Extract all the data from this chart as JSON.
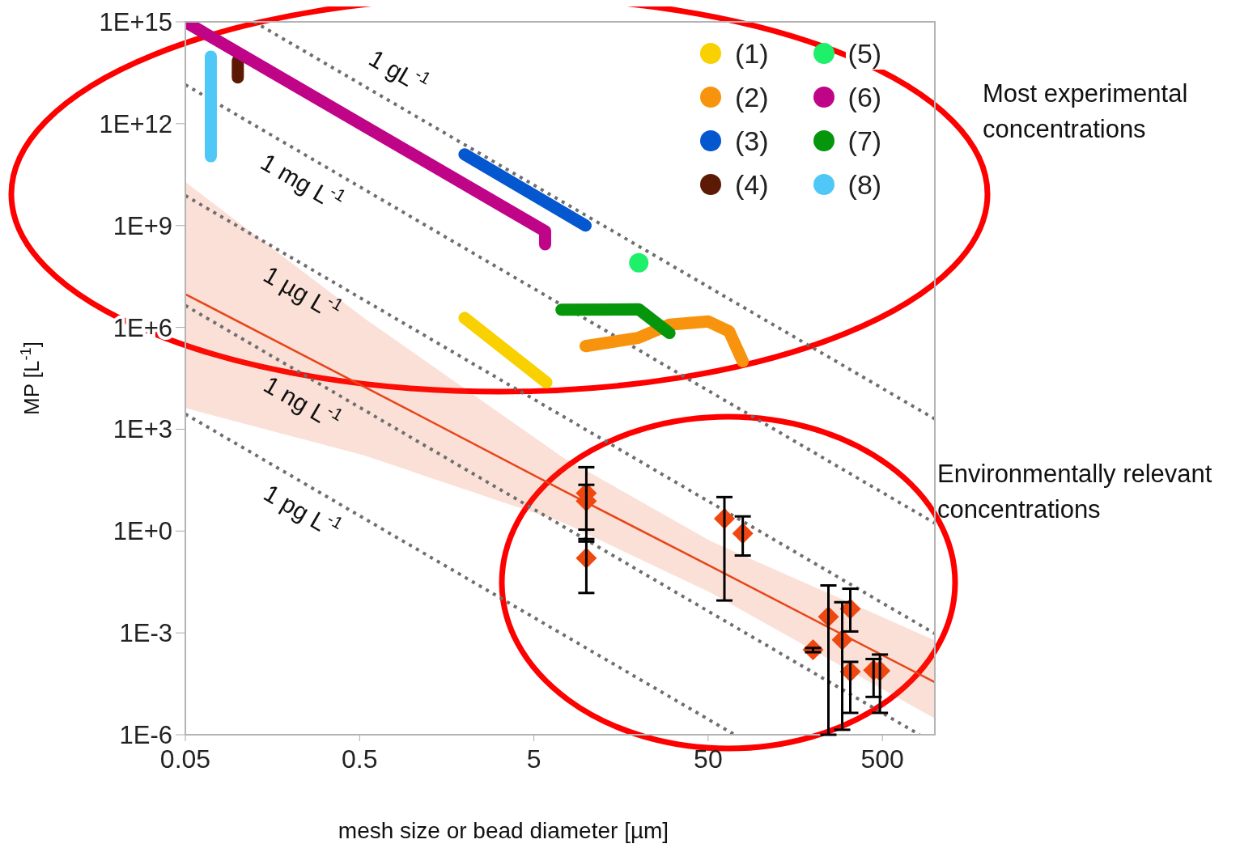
{
  "chart_data": {
    "type": "line",
    "xlabel": "mesh size or bead diameter [µm]",
    "ylabel": "MP  [L$^{-1}$]",
    "log": "xy",
    "legend": "top right",
    "xlim": [
      0.05,
      1000
    ],
    "xticks": [
      0.05,
      0.5,
      5,
      50,
      500
    ],
    "ylim": [
      1e-06,
      1000000000000000.0
    ],
    "yticks": [
      {
        "value": 1e-06,
        "label": "1E-6"
      },
      {
        "value": 0.001,
        "label": "1E-3"
      },
      {
        "value": 1,
        "label": "1E+0"
      },
      {
        "value": 1000.0,
        "label": "1E+3"
      },
      {
        "value": 1000000.0,
        "label": "1E+6"
      },
      {
        "value": 1000000000.0,
        "label": "1E+9"
      },
      {
        "value": 1000000000000.0,
        "label": "1E+12"
      },
      {
        "value": 1000000000000000.0,
        "label": "1E+15"
      }
    ],
    "annotations": [
      "Most experimental concentrations",
      "Environmentally relevant concentrations"
    ],
    "series": [
      {
        "name": "1 gL$^{-1}$",
        "color": "#6e6e6e",
        "line_style": "dotted",
        "x": [
          0.124,
          1000
        ],
        "values": [
          1000000000000000.0,
          2000
        ]
      },
      {
        "name": "1 mg L$^{-1}$",
        "color": "#6e6e6e",
        "line_style": "dotted",
        "x": [
          0.05,
          1000
        ],
        "values": [
          14000000000000.0,
          1.7
        ]
      },
      {
        "name": "1 µg L$^{-1}$",
        "color": "#6e6e6e",
        "line_style": "dotted",
        "x": [
          0.05,
          1000
        ],
        "values": [
          7600000000.0,
          0.00095
        ]
      },
      {
        "name": "1 ng L$^{-1}$",
        "color": "#6e6e6e",
        "line_style": "dotted",
        "x": [
          0.05,
          817
        ],
        "values": [
          4400000.0,
          1e-06
        ]
      },
      {
        "name": "1 pg L$^{-1}$",
        "color": "#6e6e6e",
        "line_style": "dotted",
        "x": [
          0.05,
          71
        ],
        "values": [
          2800,
          1e-06
        ]
      },
      {
        "color": "#e8461a",
        "line_style": "solid",
        "x": [
          0.05,
          0.53,
          7.3,
          52,
          1000
        ],
        "values": [
          9500000.0,
          18000.0,
          16,
          0.09,
          3.5e-05
        ],
        "lower": [
          4200,
          170,
          1.8,
          0.015,
          3e-06
        ],
        "upper": [
          19000000000.0,
          1900000.0,
          150,
          0.5,
          0.0006
        ]
      },
      {
        "name": "(1)",
        "color": "#f9d000",
        "line_style": "solid",
        "x": [
          2.0,
          5.9
        ],
        "values": [
          1900000.0,
          24000.0
        ]
      },
      {
        "name": "(2)",
        "color": "#f7930c",
        "line_style": "solid",
        "x": [
          9.9,
          19.8,
          30,
          50,
          66,
          79
        ],
        "values": [
          280000.0,
          490000.0,
          1200000.0,
          1500000.0,
          760000.0,
          100000.0
        ]
      },
      {
        "name": "(3)",
        "color": "#0457cf",
        "line_style": "solid",
        "x": [
          2.0,
          9.9
        ],
        "values": [
          125000000000.0,
          1000000000.0
        ]
      },
      {
        "name": "(4)",
        "color": "#5c1a05",
        "line_style": "solid",
        "x": [
          0.1,
          0.1
        ],
        "values": [
          72000000000000.0,
          23000000000000.0
        ]
      },
      {
        "type": "scatter",
        "name": "(5)",
        "color": "#1ef06a",
        "marker": "circle",
        "x": [
          20
        ],
        "values": [
          80000000.0
        ]
      },
      {
        "name": "(6)",
        "color": "#c00488",
        "line_style": "solid",
        "x": [
          0.05,
          5.8,
          5.8
        ],
        "values": [
          1000000000000000.0,
          680000000.0,
          280000000.0
        ]
      },
      {
        "name": "(7)",
        "color": "#06960c",
        "line_style": "solid",
        "x": [
          7.2,
          20,
          30
        ],
        "values": [
          3300000.0,
          3400000.0,
          680000.0
        ]
      },
      {
        "name": "(8)",
        "color": "#4fc8f7",
        "line_style": "solid",
        "x": [
          0.07,
          0.07
        ],
        "values": [
          95000000000000.0,
          110000000000.0
        ]
      },
      {
        "type": "scatter",
        "color": "#ef4710",
        "marker": "diamond",
        "x": [
          10,
          10,
          10,
          62,
          79,
          200,
          245,
          327,
          294,
          327,
          445,
          484
        ],
        "values": [
          13,
          7.6,
          0.16,
          2.3,
          0.85,
          0.00032,
          0.003,
          0.0051,
          0.00062,
          7.2e-05,
          8e-05,
          7.6e-05
        ],
        "errors": [
          [
            0.49,
            76
          ],
          [
            1.1,
            23
          ],
          [
            0.015,
            0.58
          ],
          [
            0.009,
            10
          ],
          [
            0.19,
            2.7
          ],
          [
            0.00027,
            0.00036
          ],
          [
            1e-06,
            0.025
          ],
          [
            0.0011,
            0.02
          ],
          [
            1.4e-06,
            0.008
          ],
          [
            4.4e-06,
            0.00014
          ],
          [
            1.3e-05,
            0.00017
          ],
          [
            4.4e-06,
            0.00023
          ]
        ]
      }
    ]
  }
}
